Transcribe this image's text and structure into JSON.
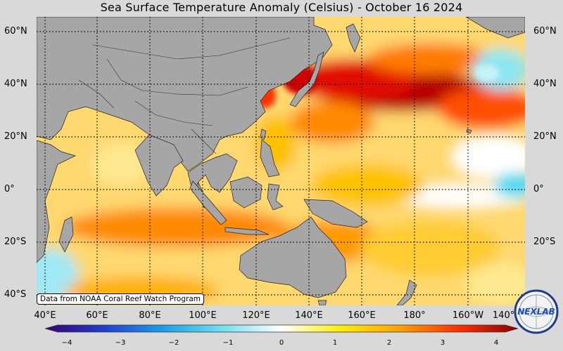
{
  "title": "Sea Surface Temperature Anomaly (Celsius) - October 16 2024",
  "lat_labels": [
    "60°N",
    "40°N",
    "20°N",
    "0°",
    "20°S",
    "40°S"
  ],
  "lon_labels": [
    "40°E",
    "60°E",
    "80°E",
    "100°E",
    "120°E",
    "140°E",
    "160°E",
    "180°",
    "160°W",
    "140°W"
  ],
  "credit": "Data from NOAA Coral Reef Watch Program",
  "logo_text": "NEXLAB",
  "colorbar": {
    "ticks": [
      "−4",
      "−3",
      "−2",
      "−1",
      "0",
      "1",
      "2",
      "3",
      "4"
    ],
    "range": [
      -4,
      4
    ],
    "stops": [
      "#3a0070",
      "#1f3fd0",
      "#1e9ee8",
      "#70e0f0",
      "#ffffff",
      "#ffee00",
      "#ffa000",
      "#ff3000",
      "#8a0000"
    ]
  },
  "colors": {
    "land": "#a6a6a6",
    "ocean_base": "#ffd870",
    "warm_anomaly": "#b80000",
    "cool_anomaly": "#4fd8f0"
  }
}
